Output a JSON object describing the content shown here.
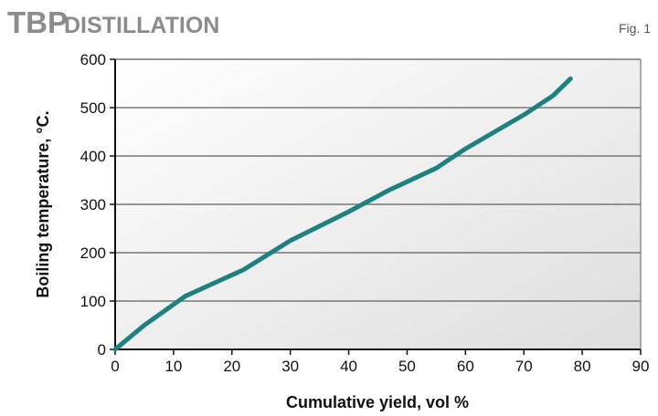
{
  "header": {
    "title_main": "TBP",
    "title_sub": "DISTILLATION",
    "fig_label": "Fig. 1"
  },
  "colors": {
    "line": "#1f8080",
    "grid": "#777777",
    "axis": "#111111",
    "title": "#8c8c8c",
    "plot_bg_start": "#ffffff",
    "plot_bg_end": "#dedede"
  },
  "chart_data": {
    "type": "line",
    "xlabel": "Cumulative yield, vol %",
    "ylabel": "Boiling temperature, °C.",
    "xlim": [
      0,
      90
    ],
    "ylim": [
      0,
      600
    ],
    "xticks": [
      0,
      10,
      20,
      30,
      40,
      50,
      60,
      70,
      80,
      90
    ],
    "yticks": [
      0,
      100,
      200,
      300,
      400,
      500,
      600
    ],
    "grid": "horizontal",
    "series": [
      {
        "x": [
          0,
          5,
          12,
          22,
          30,
          40,
          47,
          55,
          60,
          70,
          75,
          78
        ],
        "y": [
          0,
          50,
          110,
          165,
          225,
          285,
          330,
          375,
          415,
          485,
          525,
          560
        ]
      }
    ]
  }
}
